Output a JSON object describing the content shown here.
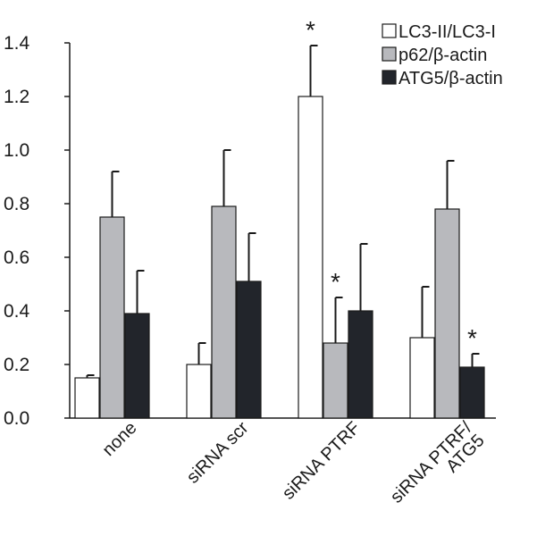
{
  "chart_data": {
    "type": "bar",
    "categories": [
      "none",
      "siRNA scr",
      "siRNA PTRF",
      "siRNA PTRF/\nATG5"
    ],
    "series": [
      {
        "name": "LC3-II/LC3-I",
        "color": "#ffffff",
        "values": [
          0.15,
          0.2,
          1.2,
          0.3
        ],
        "errors": [
          0.01,
          0.08,
          0.19,
          0.19
        ],
        "significant": [
          false,
          false,
          true,
          false
        ]
      },
      {
        "name": "p62/β-actin",
        "color": "#b8b9bd",
        "values": [
          0.75,
          0.79,
          0.28,
          0.78
        ],
        "errors": [
          0.17,
          0.21,
          0.17,
          0.18
        ],
        "significant": [
          false,
          false,
          true,
          false
        ]
      },
      {
        "name": "ATG5/β-actin",
        "color": "#22252b",
        "values": [
          0.39,
          0.51,
          0.4,
          0.19
        ],
        "errors": [
          0.16,
          0.18,
          0.25,
          0.05
        ],
        "significant": [
          false,
          false,
          false,
          true
        ]
      }
    ],
    "significance_marker": "*",
    "y_ticks": [
      "0.0",
      "0.2",
      "0.4",
      "0.6",
      "0.8",
      "1.0",
      "1.2",
      "1.4"
    ],
    "ylim": [
      0,
      1.4
    ],
    "legend_position": "top-right",
    "grid": false
  }
}
